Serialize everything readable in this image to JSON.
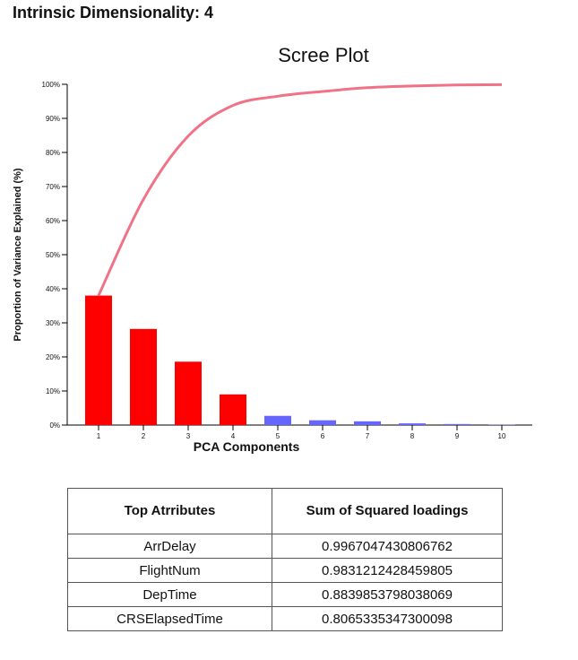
{
  "heading": "Intrinsic Dimensionality: 4",
  "colors": {
    "selected": "#ff0000",
    "unselected": "#6666ff",
    "cumulative_line": "#f07286"
  },
  "chart_data": {
    "type": "bar",
    "title": "Scree Plot",
    "xlabel": "PCA Components",
    "ylabel": "Proportion of Variance Explained (%)",
    "categories": [
      "1",
      "2",
      "3",
      "4",
      "5",
      "6",
      "7",
      "8",
      "9",
      "10"
    ],
    "values": [
      38,
      28.2,
      18.6,
      9,
      2.7,
      1.4,
      1.1,
      0.5,
      0.3,
      0.1
    ],
    "selected_components": 4,
    "cumulative": [
      38,
      66.2,
      84.8,
      93.8,
      96.5,
      97.9,
      99.0,
      99.5,
      99.8,
      99.9
    ],
    "ylim": [
      0,
      100
    ],
    "yticks": [
      "0%",
      "10%",
      "20%",
      "30%",
      "40%",
      "50%",
      "60%",
      "70%",
      "80%",
      "90%",
      "100%"
    ],
    "grid": false,
    "legend": "none"
  },
  "table": {
    "headers": [
      "Top Atrributes",
      "Sum of Squared loadings"
    ],
    "rows": [
      [
        "ArrDelay",
        "0.9967047430806762"
      ],
      [
        "FlightNum",
        "0.9831212428459805"
      ],
      [
        "DepTime",
        "0.8839853798038069"
      ],
      [
        "CRSElapsedTime",
        "0.8065335347300098"
      ]
    ]
  }
}
